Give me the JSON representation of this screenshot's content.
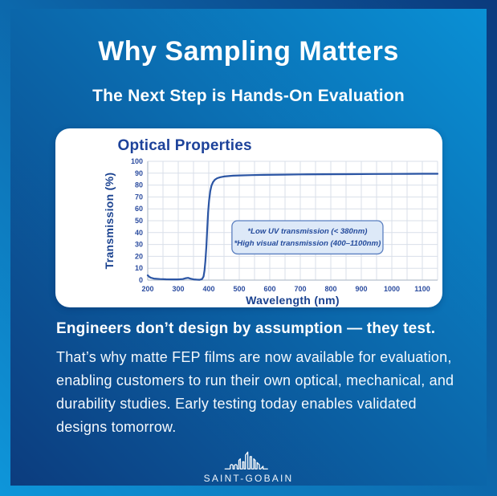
{
  "header": {
    "title": "Why Sampling Matters",
    "subtitle": "The Next Step is Hands-On Evaluation"
  },
  "chart_data": {
    "type": "line",
    "title": "Optical Properties",
    "xlabel": "Wavelength (nm)",
    "ylabel": "Transmission (%)",
    "xlim": [
      200,
      1150
    ],
    "ylim": [
      0,
      100
    ],
    "x_ticks": [
      200,
      300,
      400,
      500,
      600,
      700,
      800,
      900,
      1000,
      1100
    ],
    "y_ticks": [
      0,
      10,
      20,
      30,
      40,
      50,
      60,
      70,
      80,
      90,
      100
    ],
    "x_grid_step": 50,
    "y_grid_step": 10,
    "grid": true,
    "legend": "none",
    "colors": {
      "grid": "#d9dfe9",
      "axis": "#b6c0cd",
      "line": "#2b55a4"
    },
    "series": [
      {
        "name": "Transmission",
        "points": [
          [
            200,
            4
          ],
          [
            205,
            2.8
          ],
          [
            210,
            2
          ],
          [
            220,
            1.3
          ],
          [
            240,
            0.9
          ],
          [
            260,
            0.7
          ],
          [
            280,
            0.6
          ],
          [
            300,
            0.6
          ],
          [
            315,
            0.9
          ],
          [
            325,
            1.6
          ],
          [
            332,
            1.9
          ],
          [
            340,
            1.2
          ],
          [
            350,
            0.6
          ],
          [
            360,
            0.4
          ],
          [
            370,
            0.3
          ],
          [
            378,
            0.8
          ],
          [
            383,
            3
          ],
          [
            386,
            8
          ],
          [
            389,
            16
          ],
          [
            392,
            28
          ],
          [
            395,
            43
          ],
          [
            398,
            57
          ],
          [
            401,
            67
          ],
          [
            405,
            75
          ],
          [
            409,
            79.5
          ],
          [
            414,
            82.5
          ],
          [
            420,
            84.5
          ],
          [
            428,
            85.8
          ],
          [
            438,
            86.6
          ],
          [
            450,
            87.2
          ],
          [
            465,
            87.6
          ],
          [
            480,
            87.9
          ],
          [
            500,
            88.1
          ],
          [
            540,
            88.4
          ],
          [
            580,
            88.6
          ],
          [
            640,
            88.8
          ],
          [
            700,
            89
          ],
          [
            780,
            89.1
          ],
          [
            860,
            89.2
          ],
          [
            940,
            89.3
          ],
          [
            1020,
            89.4
          ],
          [
            1100,
            89.5
          ],
          [
            1150,
            89.5
          ]
        ]
      }
    ],
    "annotation": {
      "x_range": [
        476,
        971
      ],
      "y_range": [
        22,
        50
      ],
      "bg": "#dde9f8",
      "border": "#5a7fc0",
      "lines": [
        "*Low UV transmission (< 380nm)",
        "*High visual transmission (400–1100nm)"
      ]
    }
  },
  "body": {
    "lead": "Engineers don’t design by assumption — they test.",
    "paragraph": "That’s why matte FEP films are now available for evaluation, enabling customers to run their own optical, mechanical, and durability studies. Early testing today enables validated designs tomorrow."
  },
  "footer": {
    "brand": "SAINT-GOBAIN"
  }
}
